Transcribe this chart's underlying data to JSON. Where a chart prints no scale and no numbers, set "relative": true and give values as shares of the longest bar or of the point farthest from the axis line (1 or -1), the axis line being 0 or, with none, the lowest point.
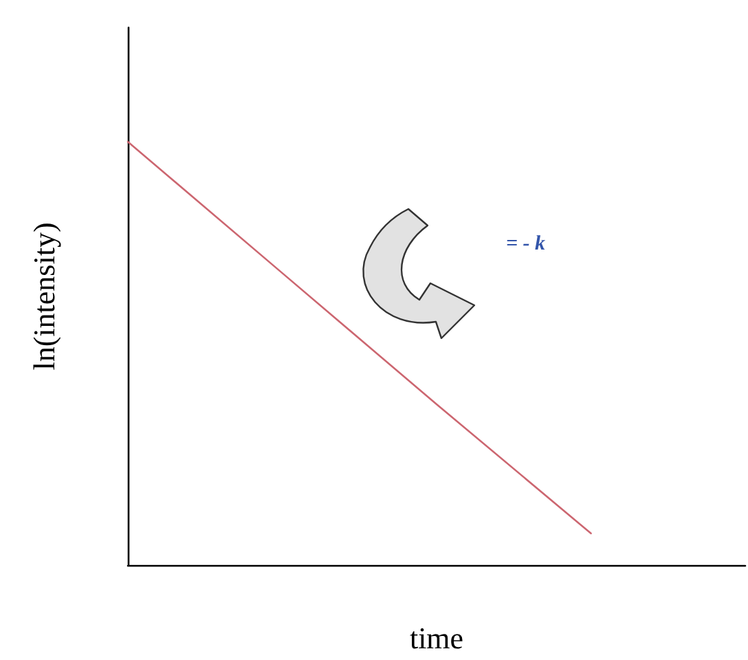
{
  "chart_data": {
    "type": "line",
    "xlabel": "time",
    "ylabel": "ln(intensity)",
    "relative": true,
    "categories": [
      null,
      null,
      null,
      null,
      null
    ],
    "series": [
      {
        "color": "#cc6670",
        "values": [
          1,
          0.69,
          0.38,
          0.075,
          null
        ]
      }
    ],
    "annotations": [
      "= - k"
    ],
    "grid": false,
    "marker": "none",
    "line_style": "solid"
  }
}
